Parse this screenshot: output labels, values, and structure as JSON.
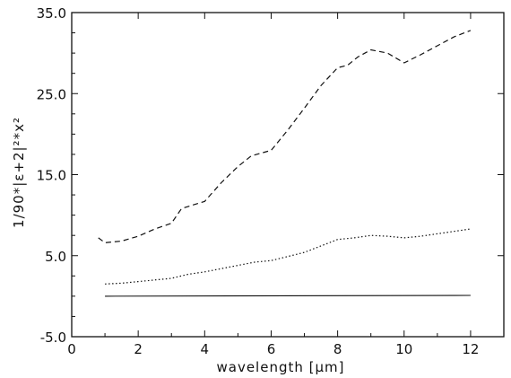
{
  "chart_data": {
    "type": "line",
    "xlabel": "wavelength [μm]",
    "ylabel": "1/90*|ε+2|²*x²",
    "xlim": [
      0,
      13
    ],
    "ylim": [
      -5.0,
      35.0
    ],
    "x_ticks": [
      0,
      2,
      4,
      6,
      8,
      10,
      12
    ],
    "x_tick_labels": [
      "0",
      "2",
      "4",
      "6",
      "8",
      "10",
      "12"
    ],
    "y_ticks": [
      -5.0,
      5.0,
      15.0,
      25.0,
      35.0
    ],
    "y_tick_labels": [
      "-5.0",
      "5.0",
      "15.0",
      "25.0",
      "35.0"
    ],
    "grid": false,
    "legend": "none",
    "series": [
      {
        "style": "dashed",
        "x": [
          0.8,
          1.0,
          1.5,
          2.0,
          2.5,
          3.0,
          3.3,
          3.6,
          4.0,
          4.5,
          5.0,
          5.4,
          6.0,
          6.5,
          7.0,
          7.5,
          8.0,
          8.3,
          8.6,
          9.0,
          9.5,
          10.0,
          10.5,
          11.0,
          11.5,
          12.0
        ],
        "y": [
          7.2,
          6.6,
          6.8,
          7.4,
          8.3,
          9.0,
          10.8,
          11.2,
          11.7,
          14.0,
          16.0,
          17.3,
          18.0,
          20.5,
          23.2,
          26.0,
          28.2,
          28.5,
          29.5,
          30.4,
          30.0,
          28.8,
          29.8,
          30.9,
          32.0,
          32.8
        ],
        "color": "#111111"
      },
      {
        "style": "dotted",
        "x": [
          1.0,
          1.5,
          2.0,
          2.5,
          3.0,
          3.5,
          4.0,
          4.5,
          5.0,
          5.5,
          6.0,
          6.5,
          7.0,
          7.5,
          8.0,
          8.5,
          9.0,
          9.5,
          10.0,
          10.5,
          11.0,
          11.5,
          12.0
        ],
        "y": [
          1.5,
          1.6,
          1.8,
          2.0,
          2.2,
          2.7,
          3.0,
          3.4,
          3.8,
          4.2,
          4.4,
          4.9,
          5.4,
          6.2,
          7.0,
          7.2,
          7.5,
          7.4,
          7.2,
          7.4,
          7.7,
          8.0,
          8.3
        ],
        "color": "#111111"
      },
      {
        "style": "solid",
        "x": [
          1.0,
          12.0
        ],
        "y": [
          0.0,
          0.1
        ],
        "color": "#111111"
      }
    ]
  }
}
